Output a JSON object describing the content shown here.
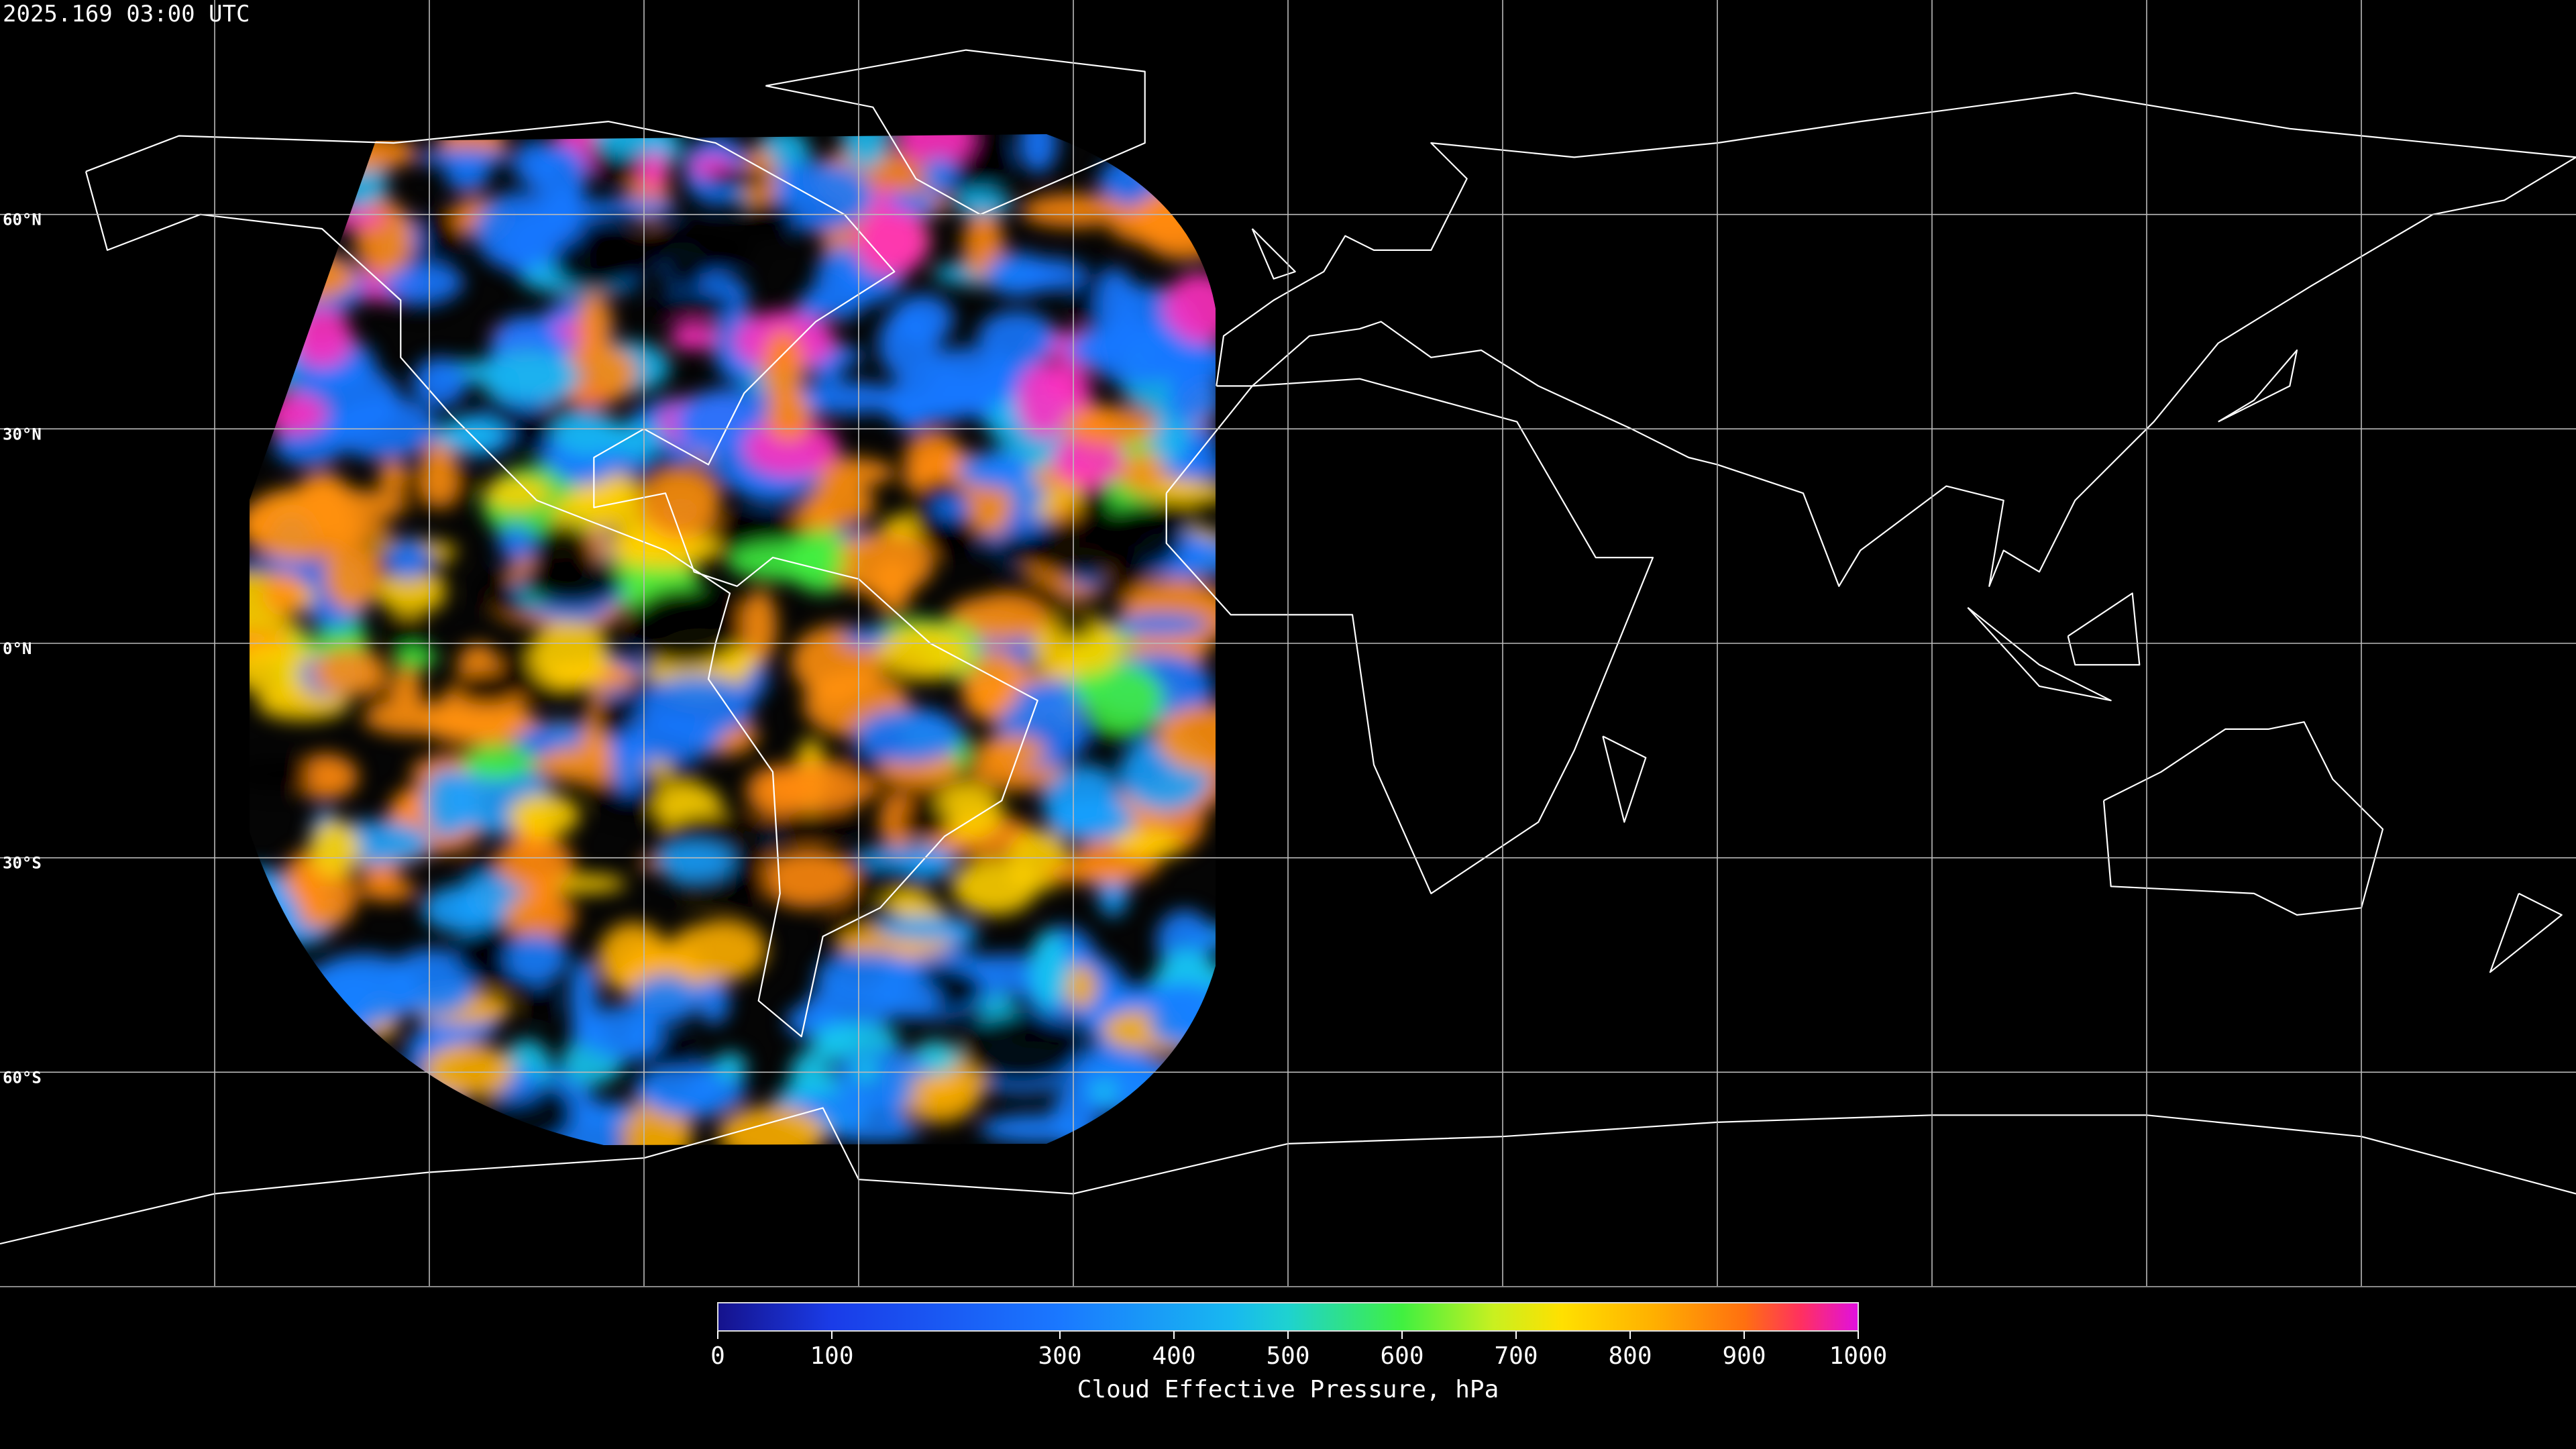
{
  "title": "2025.169 03:00 UTC",
  "latitudes": [
    {
      "value": 60,
      "label": "60°N"
    },
    {
      "value": 30,
      "label": "30°N"
    },
    {
      "value": 0,
      "label": "0°N"
    },
    {
      "value": -30,
      "label": "30°S"
    },
    {
      "value": -60,
      "label": "60°S"
    }
  ],
  "colorbar": {
    "range": [
      0,
      1000
    ],
    "ticks": [
      0,
      100,
      300,
      400,
      500,
      600,
      700,
      800,
      900,
      1000
    ],
    "label": "Cloud Effective Pressure, hPa"
  }
}
